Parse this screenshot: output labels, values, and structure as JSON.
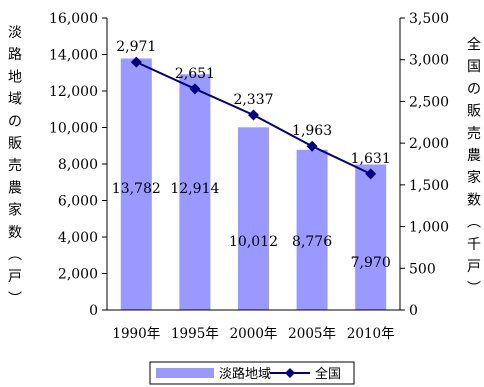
{
  "chart_data": {
    "type": "bar+line",
    "categories": [
      "1990年",
      "1995年",
      "2000年",
      "2005年",
      "2010年"
    ],
    "series": [
      {
        "name": "淡路地域",
        "type": "bar",
        "axis": "left",
        "color": "#9999ff",
        "values": [
          13782,
          12914,
          10012,
          8776,
          7970
        ],
        "labels": [
          "13,782",
          "12,914",
          "10,012",
          "8,776",
          "7,970"
        ]
      },
      {
        "name": "全国",
        "type": "line",
        "axis": "right",
        "color": "#000080",
        "marker": "diamond",
        "values": [
          2971,
          2651,
          2337,
          1963,
          1631
        ],
        "labels": [
          "2,971",
          "2,651",
          "2,337",
          "1,963",
          "1,631"
        ]
      }
    ],
    "y_left": {
      "label": "淡路地域の販売農家数（戸）",
      "ylim": [
        0,
        16000
      ],
      "ticks": [
        0,
        2000,
        4000,
        6000,
        8000,
        10000,
        12000,
        14000,
        16000
      ],
      "tick_labels": [
        "0",
        "2,000",
        "4,000",
        "6,000",
        "8,000",
        "10,000",
        "12,000",
        "14,000",
        "16,000"
      ]
    },
    "y_right": {
      "label": "全国の販売農家数（千戸）",
      "ylim": [
        0,
        3500
      ],
      "ticks": [
        0,
        500,
        1000,
        1500,
        2000,
        2500,
        3000,
        3500
      ],
      "tick_labels": [
        "0",
        "500",
        "1,000",
        "1,500",
        "2,000",
        "2,500",
        "3,000",
        "3,500"
      ]
    },
    "grid": false,
    "legend_position": "bottom"
  }
}
